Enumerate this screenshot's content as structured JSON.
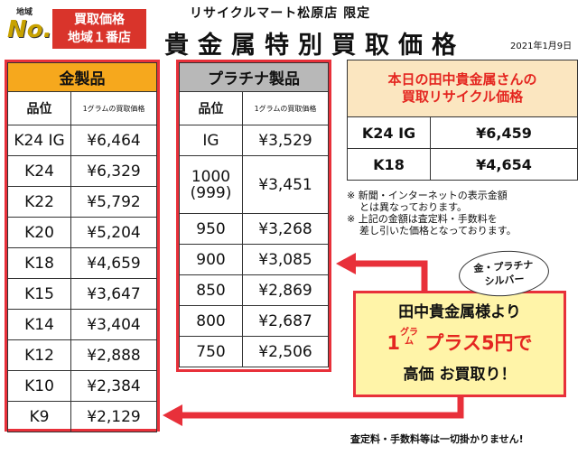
{
  "badge": {
    "small": "地域",
    "no1": "No.1",
    "line1": "買取価格",
    "line2": "地域１番店"
  },
  "store": "リサイクルマート松原店 限定",
  "title": "貴金属特別買取価格",
  "date": "2021年1月9日",
  "gold": {
    "header": "金製品",
    "col1": "品位",
    "col2": "1グラムの買取価格",
    "rows": [
      {
        "grade": "K24 IG",
        "price": "¥6,464"
      },
      {
        "grade": "K24",
        "price": "¥6,329"
      },
      {
        "grade": "K22",
        "price": "¥5,792"
      },
      {
        "grade": "K20",
        "price": "¥5,204"
      },
      {
        "grade": "K18",
        "price": "¥4,659"
      },
      {
        "grade": "K15",
        "price": "¥3,647"
      },
      {
        "grade": "K14",
        "price": "¥3,404"
      },
      {
        "grade": "K12",
        "price": "¥2,888"
      },
      {
        "grade": "K10",
        "price": "¥2,384"
      },
      {
        "grade": "K9",
        "price": "¥2,129"
      }
    ]
  },
  "platinum": {
    "header": "プラチナ製品",
    "col1": "品位",
    "col2": "1グラムの買取価格",
    "rows": [
      {
        "grade": "IG",
        "price": "¥3,529"
      },
      {
        "grade": "1000",
        "grade2": "(999)",
        "price": "¥3,451"
      },
      {
        "grade": "950",
        "price": "¥3,268"
      },
      {
        "grade": "900",
        "price": "¥3,085"
      },
      {
        "grade": "850",
        "price": "¥2,869"
      },
      {
        "grade": "800",
        "price": "¥2,687"
      },
      {
        "grade": "750",
        "price": "¥2,506"
      }
    ]
  },
  "tanaka": {
    "header1": "本日の田中貴金属さんの",
    "header2": "買取リサイクル価格",
    "rows": [
      {
        "grade": "K24 IG",
        "price": "¥6,459"
      },
      {
        "grade": "K18",
        "price": "¥4,654"
      }
    ]
  },
  "notes": {
    "n1a": "※ 新聞・インターネットの表示金額",
    "n1b": "とは異なっております。",
    "n2a": "※ 上記の金額は査定料・手数料を",
    "n2b": "差し引いた価格となっております。"
  },
  "bubble": {
    "line1": "金・プラチナ",
    "line2": "シルバー"
  },
  "promo": {
    "line1": "田中貴金属様より",
    "line2_num": "1",
    "line2_unit_a": "グラ",
    "line2_unit_b": "ム",
    "line2_rest": " プラス5円で",
    "line3": "高価 お買取り！"
  },
  "footer": "査定料・手数料等は一切掛かりません!",
  "colors": {
    "red": "#e8303a",
    "gold": "#f6a81d",
    "platinum": "#b8b8b8",
    "promo_bg": "#fff4a8",
    "tanaka_bg": "#fbe6c0"
  }
}
